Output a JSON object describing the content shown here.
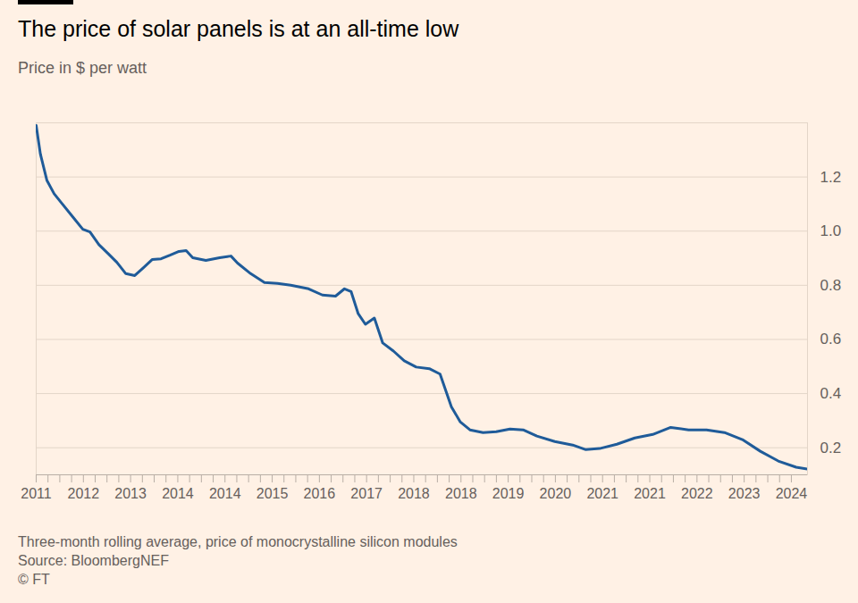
{
  "chart_data": {
    "type": "line",
    "title": "The price of solar panels is at an all-time low",
    "subtitle": "Price in $ per watt",
    "caption": "Three-month rolling average, price of monocrystalline silicon modules",
    "source": "Source: BloombergNEF",
    "credit": "© FT",
    "color": "#1f5b99",
    "grid": true,
    "x": [
      2011.2,
      2011.27,
      2011.38,
      2011.5,
      2011.62,
      2011.8,
      2011.98,
      2012.1,
      2012.25,
      2012.4,
      2012.55,
      2012.7,
      2012.85,
      2013.0,
      2013.14,
      2013.29,
      2013.44,
      2013.59,
      2013.71,
      2013.82,
      2014.04,
      2014.27,
      2014.46,
      2014.57,
      2014.79,
      2015.02,
      2015.24,
      2015.46,
      2015.76,
      2015.99,
      2016.21,
      2016.36,
      2016.47,
      2016.59,
      2016.71,
      2016.86,
      2017.0,
      2017.18,
      2017.36,
      2017.56,
      2017.78,
      2017.96,
      2018.15,
      2018.3,
      2018.46,
      2018.68,
      2018.9,
      2019.13,
      2019.35,
      2019.58,
      2019.88,
      2020.18,
      2020.4,
      2020.63,
      2020.92,
      2021.22,
      2021.52,
      2021.82,
      2022.12,
      2022.42,
      2022.72,
      2023.02,
      2023.32,
      2023.62,
      2023.92,
      2024.11
    ],
    "values": [
      1.39,
      1.285,
      1.187,
      1.138,
      1.105,
      1.056,
      1.007,
      0.997,
      0.95,
      0.918,
      0.885,
      0.843,
      0.836,
      0.866,
      0.895,
      0.898,
      0.911,
      0.925,
      0.928,
      0.902,
      0.892,
      0.902,
      0.908,
      0.882,
      0.843,
      0.81,
      0.807,
      0.8,
      0.787,
      0.764,
      0.76,
      0.787,
      0.777,
      0.695,
      0.656,
      0.679,
      0.587,
      0.557,
      0.521,
      0.498,
      0.492,
      0.472,
      0.351,
      0.295,
      0.266,
      0.256,
      0.259,
      0.269,
      0.266,
      0.243,
      0.223,
      0.21,
      0.193,
      0.197,
      0.213,
      0.236,
      0.249,
      0.275,
      0.266,
      0.266,
      0.256,
      0.23,
      0.187,
      0.151,
      0.128,
      0.121
    ],
    "xlim": [
      2011.2,
      2024.11
    ],
    "xticks": [
      {
        "value": 2011.2,
        "label": "2011"
      },
      {
        "value": 2011.99,
        "label": "2012"
      },
      {
        "value": 2012.78,
        "label": "2013"
      },
      {
        "value": 2013.57,
        "label": "2014"
      },
      {
        "value": 2014.36,
        "label": "2014"
      },
      {
        "value": 2015.15,
        "label": "2015"
      },
      {
        "value": 2015.94,
        "label": "2016"
      },
      {
        "value": 2016.73,
        "label": "2017"
      },
      {
        "value": 2017.52,
        "label": "2018"
      },
      {
        "value": 2018.31,
        "label": "2018"
      },
      {
        "value": 2019.1,
        "label": "2019"
      },
      {
        "value": 2019.89,
        "label": "2020"
      },
      {
        "value": 2020.68,
        "label": "2021"
      },
      {
        "value": 2021.47,
        "label": "2021"
      },
      {
        "value": 2022.26,
        "label": "2022"
      },
      {
        "value": 2023.05,
        "label": "2023"
      },
      {
        "value": 2023.84,
        "label": "2024"
      }
    ],
    "ylim": [
      0.1,
      1.4
    ],
    "yticks": [
      0.2,
      0.4,
      0.6,
      0.8,
      {
        "value": 1,
        "label": "1.0"
      },
      1.2
    ]
  }
}
